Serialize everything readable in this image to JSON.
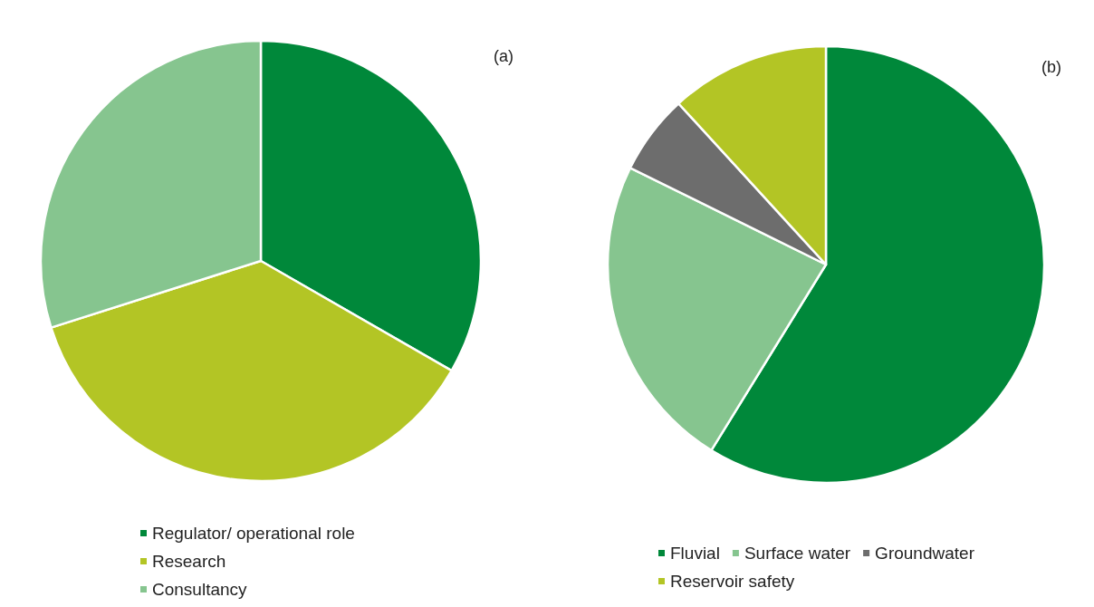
{
  "chart_data": [
    {
      "type": "pie",
      "title": "(a)",
      "categories": [
        "Regulator/ operational role",
        "Research",
        "Consultancy"
      ],
      "values": [
        33.3,
        36.8,
        29.9
      ],
      "colors": [
        "#00883a",
        "#b3c525",
        "#86c58f"
      ],
      "legend": "bottom"
    },
    {
      "type": "pie",
      "title": "(b)",
      "categories": [
        "Fluvial",
        "Surface water",
        "Groundwater",
        "Reservoir safety"
      ],
      "values": [
        58.8,
        23.5,
        5.9,
        11.8
      ],
      "colors": [
        "#00883a",
        "#86c58f",
        "#6d6d6d",
        "#b3c525"
      ],
      "legend": "bottom"
    }
  ]
}
